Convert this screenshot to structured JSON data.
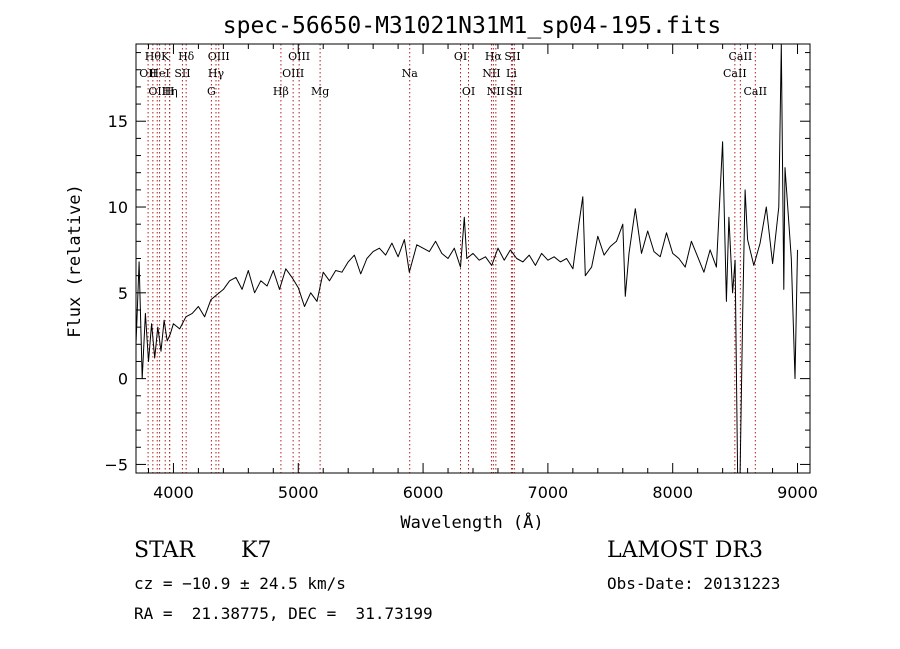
{
  "chart_data": {
    "type": "line",
    "title": "spec-56650-M31021N31M1_sp04-195.fits",
    "xlabel": "Wavelength (Å)",
    "ylabel": "Flux (relative)",
    "xlim": [
      3700,
      9100
    ],
    "ylim": [
      -5.5,
      19.5
    ],
    "xticks": [
      4000,
      5000,
      6000,
      7000,
      8000,
      9000
    ],
    "yticks": [
      -5,
      0,
      5,
      10,
      15
    ],
    "grid": false,
    "line_color": "#000000",
    "marker_color": "#b22222",
    "spectrum": {
      "x": [
        3700,
        3725,
        3750,
        3775,
        3800,
        3825,
        3850,
        3875,
        3900,
        3925,
        3950,
        3975,
        4000,
        4050,
        4100,
        4150,
        4200,
        4250,
        4300,
        4350,
        4400,
        4450,
        4500,
        4550,
        4600,
        4650,
        4700,
        4750,
        4800,
        4850,
        4900,
        4950,
        5000,
        5050,
        5100,
        5150,
        5200,
        5250,
        5300,
        5350,
        5400,
        5450,
        5500,
        5550,
        5600,
        5650,
        5700,
        5750,
        5800,
        5850,
        5890,
        5950,
        6000,
        6050,
        6100,
        6150,
        6200,
        6250,
        6300,
        6330,
        6350,
        6400,
        6450,
        6500,
        6550,
        6600,
        6650,
        6700,
        6750,
        6800,
        6850,
        6900,
        6950,
        7000,
        7050,
        7100,
        7150,
        7200,
        7250,
        7280,
        7300,
        7350,
        7400,
        7450,
        7500,
        7550,
        7600,
        7620,
        7650,
        7700,
        7750,
        7800,
        7850,
        7900,
        7950,
        8000,
        8050,
        8100,
        8150,
        8200,
        8250,
        8300,
        8350,
        8400,
        8430,
        8450,
        8480,
        8500,
        8520,
        8540,
        8560,
        8580,
        8600,
        8650,
        8700,
        8750,
        8800,
        8850,
        8870,
        8890,
        8900,
        8950,
        8980,
        9000
      ],
      "y": [
        2.0,
        6.8,
        0.0,
        3.8,
        1.0,
        3.2,
        1.2,
        3.0,
        1.6,
        3.4,
        2.2,
        2.6,
        3.2,
        2.9,
        3.6,
        3.8,
        4.2,
        3.6,
        4.6,
        4.9,
        5.2,
        5.7,
        5.9,
        5.2,
        6.3,
        5.0,
        5.7,
        5.4,
        6.3,
        5.2,
        6.4,
        5.9,
        5.3,
        4.2,
        5.0,
        4.5,
        6.2,
        5.7,
        6.3,
        6.2,
        6.8,
        7.2,
        6.1,
        7.0,
        7.4,
        7.6,
        7.2,
        7.9,
        7.1,
        8.1,
        6.2,
        7.8,
        7.6,
        7.4,
        8.0,
        7.3,
        7.0,
        7.6,
        6.5,
        9.4,
        7.0,
        7.3,
        6.9,
        7.1,
        6.6,
        7.6,
        6.9,
        7.5,
        7.0,
        6.8,
        7.2,
        6.6,
        7.3,
        6.9,
        7.1,
        6.8,
        7.0,
        6.4,
        9.1,
        10.6,
        6.0,
        6.5,
        8.3,
        7.2,
        7.7,
        8.0,
        9.0,
        4.8,
        7.3,
        9.9,
        7.3,
        8.6,
        7.4,
        7.1,
        8.5,
        7.3,
        7.0,
        6.5,
        8.0,
        7.1,
        6.2,
        7.5,
        6.5,
        13.8,
        4.5,
        9.4,
        5.0,
        6.9,
        -5.5,
        -5.5,
        3.5,
        11.0,
        8.1,
        6.6,
        7.9,
        10.0,
        6.7,
        10.0,
        19.5,
        5.2,
        12.3,
        7.0,
        0.0,
        7.5
      ]
    },
    "line_markers": [
      {
        "x": 3797,
        "row": 1,
        "label": "OII"
      },
      {
        "x": 3835,
        "row": 0,
        "label": "Hθ"
      },
      {
        "x": 3870,
        "row": 2,
        "label": "OII"
      },
      {
        "x": 3889,
        "row": 1,
        "label": "HeI"
      },
      {
        "x": 3934,
        "row": 0,
        "label": "K"
      },
      {
        "x": 3970,
        "row": 2,
        "label": "Hη"
      },
      {
        "x": 3969,
        "row": 2,
        "label": "H"
      },
      {
        "x": 4072,
        "row": 1,
        "label": "SII"
      },
      {
        "x": 4102,
        "row": 0,
        "label": "Hδ"
      },
      {
        "x": 4304,
        "row": 2,
        "label": "G"
      },
      {
        "x": 4341,
        "row": 1,
        "label": "Hγ"
      },
      {
        "x": 4363,
        "row": 0,
        "label": "OIII"
      },
      {
        "x": 4861,
        "row": 2,
        "label": "Hβ"
      },
      {
        "x": 4959,
        "row": 1,
        "label": "OIII"
      },
      {
        "x": 5007,
        "row": 0,
        "label": "OIII"
      },
      {
        "x": 5175,
        "row": 2,
        "label": "Mg"
      },
      {
        "x": 5893,
        "row": 1,
        "label": "Na"
      },
      {
        "x": 6300,
        "row": 0,
        "label": "OI"
      },
      {
        "x": 6364,
        "row": 2,
        "label": "OI"
      },
      {
        "x": 6548,
        "row": 1,
        "label": "NII"
      },
      {
        "x": 6563,
        "row": 0,
        "label": "Hα"
      },
      {
        "x": 6583,
        "row": 2,
        "label": "NII"
      },
      {
        "x": 6708,
        "row": 1,
        "label": "Li"
      },
      {
        "x": 6716,
        "row": 0,
        "label": "SII"
      },
      {
        "x": 6731,
        "row": 2,
        "label": "SII"
      },
      {
        "x": 8498,
        "row": 1,
        "label": "CaII"
      },
      {
        "x": 8542,
        "row": 0,
        "label": "CaII"
      },
      {
        "x": 8662,
        "row": 2,
        "label": "CaII"
      }
    ]
  },
  "info": {
    "object_class": "STAR",
    "subclass": "K7",
    "survey": "LAMOST DR3",
    "cz": "cz = −10.9 ± 24.5 km/s",
    "obs_date": "Obs-Date: 20131223",
    "coords": "RA =  21.38775, DEC =  31.73199"
  }
}
